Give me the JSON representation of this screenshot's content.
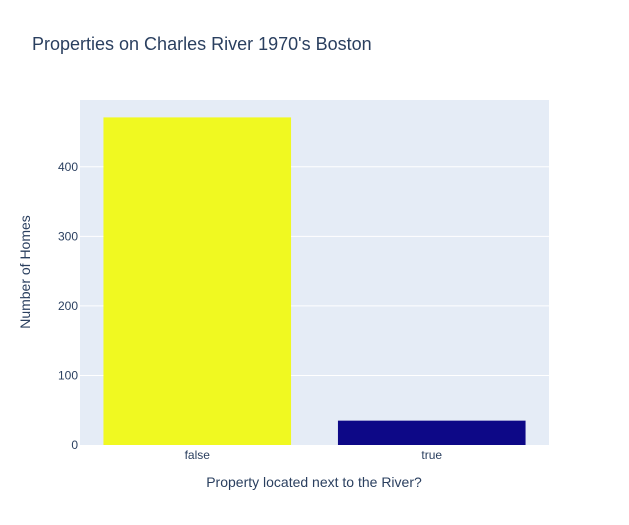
{
  "chart_data": {
    "type": "bar",
    "title": "Properties on Charles River 1970's Boston",
    "categories": [
      "false",
      "true"
    ],
    "values": [
      471,
      35
    ],
    "bar_colors": [
      "#f0f921",
      "#0d0887"
    ],
    "xlabel": "Property located next to the River?",
    "ylabel": "Number of Homes",
    "ylim": [
      0,
      496
    ],
    "yticks": [
      0,
      100,
      200,
      300,
      400
    ],
    "grid": true,
    "plot_background": "#e5ecf6",
    "legend": "none"
  }
}
